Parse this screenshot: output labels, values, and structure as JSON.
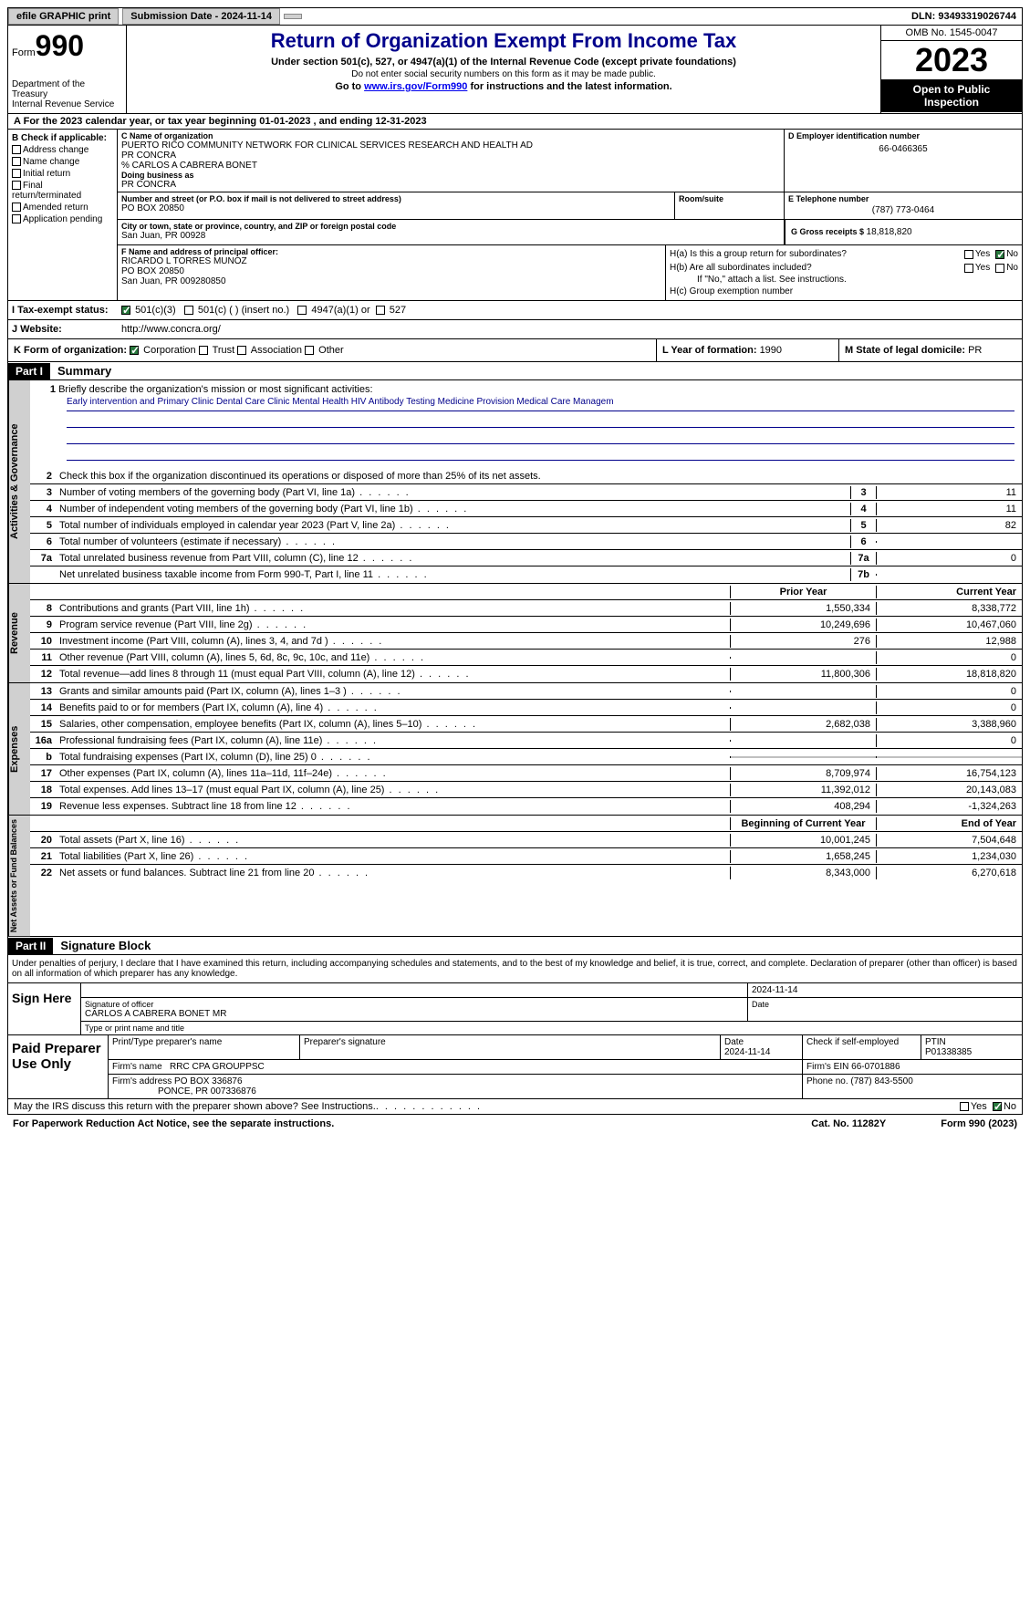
{
  "topbar": {
    "efile": "efile GRAPHIC print",
    "submission_label": "Submission Date - ",
    "submission_date": "2024-11-14",
    "dln_label": "DLN: ",
    "dln": "93493319026744"
  },
  "header": {
    "form_prefix": "Form",
    "form_number": "990",
    "dept": "Department of the Treasury\nInternal Revenue Service",
    "title": "Return of Organization Exempt From Income Tax",
    "subtitle": "Under section 501(c), 527, or 4947(a)(1) of the Internal Revenue Code (except private foundations)",
    "note": "Do not enter social security numbers on this form as it may be made public.",
    "goto": "Go to ",
    "goto_link": "www.irs.gov/Form990",
    "goto_tail": " for instructions and the latest information.",
    "omb": "OMB No. 1545-0047",
    "year": "2023",
    "inspection": "Open to Public Inspection"
  },
  "period": "For the 2023 calendar year, or tax year beginning 01-01-2023   , and ending 12-31-2023",
  "section_b": {
    "header": "B Check if applicable:",
    "items": [
      "Address change",
      "Name change",
      "Initial return",
      "Final return/terminated",
      "Amended return",
      "Application pending"
    ]
  },
  "section_c": {
    "label": "C Name of organization",
    "org": "PUERTO RICO COMMUNITY NETWORK FOR CLINICAL SERVICES RESEARCH AND HEALTH AD",
    "line2": "PR CONCRA",
    "line3": "% CARLOS A CABRERA BONET",
    "dba_label": "Doing business as",
    "dba": "PR CONCRA",
    "addr_label": "Number and street (or P.O. box if mail is not delivered to street address)",
    "addr": "PO BOX 20850",
    "room_label": "Room/suite",
    "city_label": "City or town, state or province, country, and ZIP or foreign postal code",
    "city": "San Juan, PR  00928"
  },
  "section_d": {
    "label": "D Employer identification number",
    "value": "66-0466365"
  },
  "section_e": {
    "label": "E Telephone number",
    "value": "(787) 773-0464"
  },
  "section_g": {
    "label": "G Gross receipts $ ",
    "value": "18,818,820"
  },
  "section_f": {
    "label": "F  Name and address of principal officer:",
    "name": "RICARDO L TORRES MUNOZ",
    "addr1": "PO BOX 20850",
    "addr2": "San Juan, PR  009280850"
  },
  "section_h": {
    "ha": "H(a)  Is this a group return for subordinates?",
    "hb": "H(b)  Are all subordinates included?",
    "hb_note": "If \"No,\" attach a list. See instructions.",
    "hc": "H(c)  Group exemption number",
    "yes": "Yes",
    "no": "No"
  },
  "section_i": {
    "label": "I    Tax-exempt status:",
    "opt1": "501(c)(3)",
    "opt2": "501(c) (  ) (insert no.)",
    "opt3": "4947(a)(1) or",
    "opt4": "527"
  },
  "section_j": {
    "label": "J    Website:",
    "value": "http://www.concra.org/"
  },
  "section_k": {
    "label": "K Form of organization:",
    "opts": [
      "Corporation",
      "Trust",
      "Association",
      "Other"
    ]
  },
  "section_l": {
    "label": "L Year of formation: ",
    "value": "1990"
  },
  "section_m": {
    "label": "M State of legal domicile: ",
    "value": "PR"
  },
  "part1": {
    "num": "Part I",
    "title": "Summary"
  },
  "summary": {
    "line1_label": "Briefly describe the organization's mission or most significant activities:",
    "line1_text": "Early intervention and Primary Clinic Dental Care Clinic Mental Health HIV Antibody Testing Medicine Provision Medical Care Managem",
    "line2": "Check this box      if the organization discontinued its operations or disposed of more than 25% of its net assets.",
    "rows_gov": [
      {
        "n": "3",
        "t": "Number of voting members of the governing body (Part VI, line 1a)",
        "box": "3",
        "v": "11"
      },
      {
        "n": "4",
        "t": "Number of independent voting members of the governing body (Part VI, line 1b)",
        "box": "4",
        "v": "11"
      },
      {
        "n": "5",
        "t": "Total number of individuals employed in calendar year 2023 (Part V, line 2a)",
        "box": "5",
        "v": "82"
      },
      {
        "n": "6",
        "t": "Total number of volunteers (estimate if necessary)",
        "box": "6",
        "v": ""
      },
      {
        "n": "7a",
        "t": "Total unrelated business revenue from Part VIII, column (C), line 12",
        "box": "7a",
        "v": "0"
      },
      {
        "n": "",
        "t": "Net unrelated business taxable income from Form 990-T, Part I, line 11",
        "box": "7b",
        "v": ""
      }
    ],
    "hdr_prior": "Prior Year",
    "hdr_current": "Current Year",
    "rows_rev": [
      {
        "n": "8",
        "t": "Contributions and grants (Part VIII, line 1h)",
        "p": "1,550,334",
        "c": "8,338,772"
      },
      {
        "n": "9",
        "t": "Program service revenue (Part VIII, line 2g)",
        "p": "10,249,696",
        "c": "10,467,060"
      },
      {
        "n": "10",
        "t": "Investment income (Part VIII, column (A), lines 3, 4, and 7d )",
        "p": "276",
        "c": "12,988"
      },
      {
        "n": "11",
        "t": "Other revenue (Part VIII, column (A), lines 5, 6d, 8c, 9c, 10c, and 11e)",
        "p": "",
        "c": "0"
      },
      {
        "n": "12",
        "t": "Total revenue—add lines 8 through 11 (must equal Part VIII, column (A), line 12)",
        "p": "11,800,306",
        "c": "18,818,820"
      }
    ],
    "rows_exp": [
      {
        "n": "13",
        "t": "Grants and similar amounts paid (Part IX, column (A), lines 1–3 )",
        "p": "",
        "c": "0"
      },
      {
        "n": "14",
        "t": "Benefits paid to or for members (Part IX, column (A), line 4)",
        "p": "",
        "c": "0"
      },
      {
        "n": "15",
        "t": "Salaries, other compensation, employee benefits (Part IX, column (A), lines 5–10)",
        "p": "2,682,038",
        "c": "3,388,960"
      },
      {
        "n": "16a",
        "t": "Professional fundraising fees (Part IX, column (A), line 11e)",
        "p": "",
        "c": "0"
      },
      {
        "n": "b",
        "t": "Total fundraising expenses (Part IX, column (D), line 25) 0",
        "p": "grey",
        "c": "grey"
      },
      {
        "n": "17",
        "t": "Other expenses (Part IX, column (A), lines 11a–11d, 11f–24e)",
        "p": "8,709,974",
        "c": "16,754,123"
      },
      {
        "n": "18",
        "t": "Total expenses. Add lines 13–17 (must equal Part IX, column (A), line 25)",
        "p": "11,392,012",
        "c": "20,143,083"
      },
      {
        "n": "19",
        "t": "Revenue less expenses. Subtract line 18 from line 12",
        "p": "408,294",
        "c": "-1,324,263"
      }
    ],
    "hdr_begin": "Beginning of Current Year",
    "hdr_end": "End of Year",
    "rows_net": [
      {
        "n": "20",
        "t": "Total assets (Part X, line 16)",
        "p": "10,001,245",
        "c": "7,504,648"
      },
      {
        "n": "21",
        "t": "Total liabilities (Part X, line 26)",
        "p": "1,658,245",
        "c": "1,234,030"
      },
      {
        "n": "22",
        "t": "Net assets or fund balances. Subtract line 21 from line 20",
        "p": "8,343,000",
        "c": "6,270,618"
      }
    ]
  },
  "vtabs": {
    "gov": "Activities & Governance",
    "rev": "Revenue",
    "exp": "Expenses",
    "net": "Net Assets or Fund Balances"
  },
  "part2": {
    "num": "Part II",
    "title": "Signature Block"
  },
  "sig": {
    "declaration": "Under penalties of perjury, I declare that I have examined this return, including accompanying schedules and statements, and to the best of my knowledge and belief, it is true, correct, and complete. Declaration of preparer (other than officer) is based on all information of which preparer has any knowledge.",
    "sign_here": "Sign Here",
    "date": "2024-11-14",
    "sig_label": "Signature of officer",
    "officer": "CARLOS A CABRERA BONET  MR",
    "title_label": "Type or print name and title",
    "date_label": "Date"
  },
  "paid": {
    "label": "Paid Preparer Use Only",
    "h1": "Print/Type preparer's name",
    "h2": "Preparer's signature",
    "h3": "Date",
    "h3v": "2024-11-14",
    "h4": "Check        if self-employed",
    "h5": "PTIN",
    "h5v": "P01338385",
    "firm_label": "Firm's name",
    "firm": "RRC CPA GROUPPSC",
    "ein_label": "Firm's EIN",
    "ein": "66-0701886",
    "addr_label": "Firm's address",
    "addr1": "PO BOX 336876",
    "addr2": "PONCE, PR  007336876",
    "phone_label": "Phone no.",
    "phone": "(787) 843-5500"
  },
  "footer": {
    "discuss": "May the IRS discuss this return with the preparer shown above? See Instructions.",
    "yes": "Yes",
    "no": "No",
    "paperwork": "For Paperwork Reduction Act Notice, see the separate instructions.",
    "cat": "Cat. No. 11282Y",
    "form": "Form 990 (2023)"
  }
}
